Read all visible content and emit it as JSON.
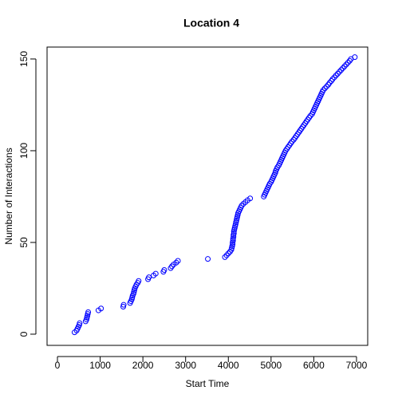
{
  "chart_data": {
    "type": "scatter",
    "title": "Location 4",
    "x_label": "Start Time",
    "y_label": "Number of Interactions",
    "color": "#0000ff",
    "xlim": [
      -243,
      7262
    ],
    "ylim": [
      -6.1,
      156.5
    ],
    "xticks": [
      0,
      1000,
      2000,
      3000,
      4000,
      5000,
      6000,
      7000
    ],
    "yticks": [
      0,
      50,
      100,
      150
    ],
    "x": [
      400,
      450,
      470,
      490,
      510,
      520,
      660,
      680,
      690,
      700,
      710,
      720,
      960,
      1020,
      1540,
      1550,
      1700,
      1720,
      1740,
      1750,
      1760,
      1780,
      1790,
      1800,
      1810,
      1830,
      1850,
      1880,
      1900,
      2120,
      2140,
      2250,
      2300,
      2480,
      2500,
      2650,
      2680,
      2720,
      2780,
      2820,
      3520,
      3920,
      3960,
      4000,
      4040,
      4070,
      4080,
      4090,
      4100,
      4100,
      4110,
      4110,
      4120,
      4120,
      4130,
      4130,
      4140,
      4150,
      4160,
      4170,
      4180,
      4190,
      4200,
      4210,
      4220,
      4230,
      4250,
      4270,
      4290,
      4310,
      4350,
      4400,
      4450,
      4510,
      4830,
      4850,
      4870,
      4890,
      4910,
      4930,
      4950,
      4970,
      5000,
      5020,
      5040,
      5060,
      5080,
      5100,
      5110,
      5130,
      5150,
      5180,
      5200,
      5220,
      5240,
      5260,
      5280,
      5300,
      5320,
      5340,
      5370,
      5400,
      5430,
      5460,
      5490,
      5530,
      5560,
      5590,
      5620,
      5650,
      5680,
      5710,
      5740,
      5770,
      5800,
      5830,
      5860,
      5890,
      5920,
      5960,
      5980,
      6000,
      6020,
      6040,
      6060,
      6080,
      6100,
      6120,
      6140,
      6160,
      6180,
      6200,
      6220,
      6260,
      6300,
      6340,
      6370,
      6410,
      6440,
      6480,
      6520,
      6560,
      6600,
      6640,
      6680,
      6720,
      6760,
      6800,
      6840,
      6870,
      6960
    ],
    "y": [
      1,
      2,
      3,
      4,
      5,
      6,
      7,
      8,
      9,
      10,
      11,
      12,
      13,
      14,
      15,
      16,
      17,
      18,
      19,
      20,
      21,
      22,
      23,
      24,
      25,
      26,
      27,
      28,
      29,
      30,
      31,
      32,
      33,
      34,
      35,
      36,
      37,
      38,
      39,
      40,
      41,
      42,
      43,
      44,
      45,
      46,
      47,
      48,
      49,
      50,
      51,
      52,
      53,
      54,
      55,
      56,
      57,
      58,
      59,
      60,
      61,
      62,
      63,
      64,
      65,
      66,
      67,
      68,
      69,
      70,
      71,
      72,
      73,
      74,
      75,
      76,
      77,
      78,
      79,
      80,
      81,
      82,
      83,
      84,
      85,
      86,
      87,
      88,
      89,
      90,
      91,
      92,
      93,
      94,
      95,
      96,
      97,
      98,
      99,
      100,
      101,
      102,
      103,
      104,
      105,
      106,
      107,
      108,
      109,
      110,
      111,
      112,
      113,
      114,
      115,
      116,
      117,
      118,
      119,
      120,
      121,
      122,
      123,
      124,
      125,
      126,
      127,
      128,
      129,
      130,
      131,
      132,
      133,
      134,
      135,
      136,
      137,
      138,
      139,
      140,
      141,
      142,
      143,
      144,
      145,
      146,
      147,
      148,
      149,
      150,
      151
    ]
  }
}
